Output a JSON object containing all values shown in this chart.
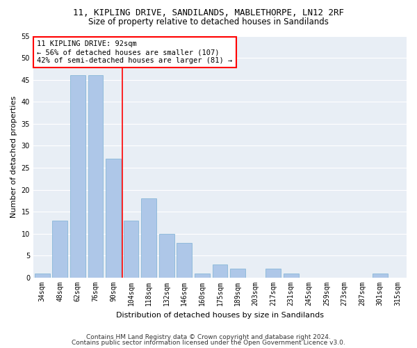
{
  "title1": "11, KIPLING DRIVE, SANDILANDS, MABLETHORPE, LN12 2RF",
  "title2": "Size of property relative to detached houses in Sandilands",
  "xlabel": "Distribution of detached houses by size in Sandilands",
  "ylabel": "Number of detached properties",
  "categories": [
    "34sqm",
    "48sqm",
    "62sqm",
    "76sqm",
    "90sqm",
    "104sqm",
    "118sqm",
    "132sqm",
    "146sqm",
    "160sqm",
    "175sqm",
    "189sqm",
    "203sqm",
    "217sqm",
    "231sqm",
    "245sqm",
    "259sqm",
    "273sqm",
    "287sqm",
    "301sqm",
    "315sqm"
  ],
  "values": [
    1,
    13,
    46,
    46,
    27,
    13,
    18,
    10,
    8,
    1,
    3,
    2,
    0,
    2,
    1,
    0,
    0,
    0,
    0,
    1,
    0
  ],
  "bar_color": "#aec7e8",
  "bar_edge_color": "#7aafd4",
  "vline_x": 4.5,
  "vline_color": "red",
  "annotation_title": "11 KIPLING DRIVE: 92sqm",
  "annotation_line1": "← 56% of detached houses are smaller (107)",
  "annotation_line2": "42% of semi-detached houses are larger (81) →",
  "ylim": [
    0,
    55
  ],
  "yticks": [
    0,
    5,
    10,
    15,
    20,
    25,
    30,
    35,
    40,
    45,
    50,
    55
  ],
  "footer1": "Contains HM Land Registry data © Crown copyright and database right 2024.",
  "footer2": "Contains public sector information licensed under the Open Government Licence v3.0.",
  "bg_color": "#e8eef5",
  "grid_color": "white",
  "title_fontsize": 9,
  "subtitle_fontsize": 8.5,
  "axis_label_fontsize": 8,
  "tick_fontsize": 7,
  "footer_fontsize": 6.5
}
